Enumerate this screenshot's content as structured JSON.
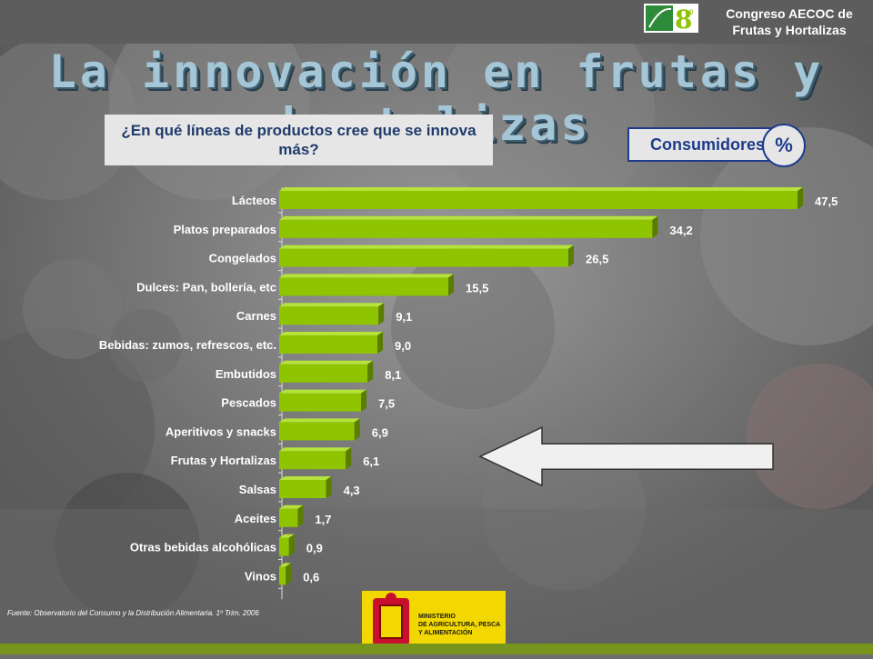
{
  "header": {
    "congress_line1": "Congreso AECOC de",
    "congress_line2": "Frutas y Hortalizas",
    "logo_icon": "aecoc-8-logo-icon"
  },
  "title": "La innovación en frutas y hortalizas",
  "question": "¿En qué líneas de productos cree que se innova más?",
  "segment_label": "Consumidores",
  "unit_label": "%",
  "source": "Fuente: Observatorio del Consumo y la Distribución Alimentaria. 1º Trim. 2006",
  "ministry": {
    "line1": "MINISTERIO",
    "line2": "DE AGRICULTURA, PESCA",
    "line3": "Y ALIMENTACIÓN"
  },
  "colors": {
    "bar": "#8fc400",
    "bar_dark": "#5a7d00",
    "accent": "#1f3c8c",
    "title": "#a5c6d6"
  },
  "chart_data": {
    "type": "bar",
    "orientation": "horizontal",
    "categories": [
      "Lácteos",
      "Platos preparados",
      "Congelados",
      "Dulces: Pan, bollería, etc",
      "Carnes",
      "Bebidas: zumos, refrescos, etc.",
      "Embutidos",
      "Pescados",
      "Aperitivos y snacks",
      "Frutas y Hortalizas",
      "Salsas",
      "Aceites",
      "Otras bebidas alcohólicas",
      "Vinos"
    ],
    "values": [
      47.5,
      34.2,
      26.5,
      15.5,
      9.1,
      9.0,
      8.1,
      7.5,
      6.9,
      6.1,
      4.3,
      1.7,
      0.9,
      0.6
    ],
    "value_labels": [
      "47,5",
      "34,2",
      "26,5",
      "15,5",
      "9,1",
      "9,0",
      "8,1",
      "7,5",
      "6,9",
      "6,1",
      "4,3",
      "1,7",
      "0,9",
      "0,6"
    ],
    "highlight_category": "Frutas y Hortalizas",
    "xlim": [
      0,
      50
    ],
    "grid": false
  }
}
